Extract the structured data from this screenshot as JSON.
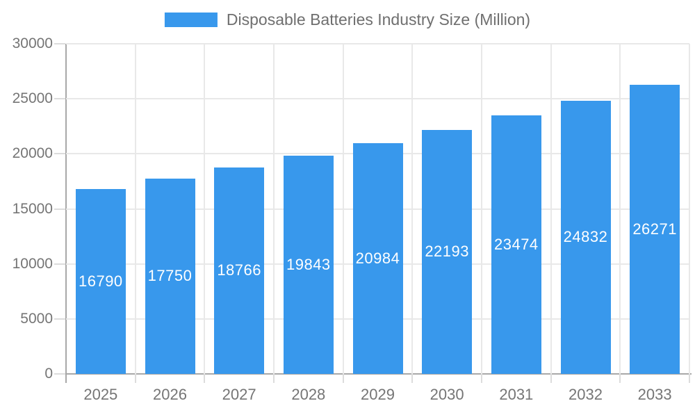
{
  "legend": {
    "label": "Disposable Batteries Industry Size (Million)"
  },
  "chart_data": {
    "type": "bar",
    "title": "",
    "categories": [
      "2025",
      "2026",
      "2027",
      "2028",
      "2029",
      "2030",
      "2031",
      "2032",
      "2033"
    ],
    "series": [
      {
        "name": "Disposable Batteries Industry Size (Million)",
        "values": [
          16790,
          17750,
          18766,
          19843,
          20984,
          22193,
          23474,
          24832,
          26271
        ]
      }
    ],
    "xlabel": "",
    "ylabel": "",
    "ylim": [
      0,
      30000
    ],
    "yticks": [
      0,
      5000,
      10000,
      15000,
      20000,
      25000,
      30000
    ],
    "grid": "horizontal-and-vertical",
    "legend_position": "top-center",
    "value_labels": "inside-bar-centered",
    "colors": {
      "bar": "#3898EC",
      "grid": "#E8E8E8",
      "axis": "#A8A8A8",
      "tick": "#DCDCDC",
      "text": "#757575",
      "value_label": "#FFFFFF",
      "background": "#FFFFFF"
    }
  }
}
